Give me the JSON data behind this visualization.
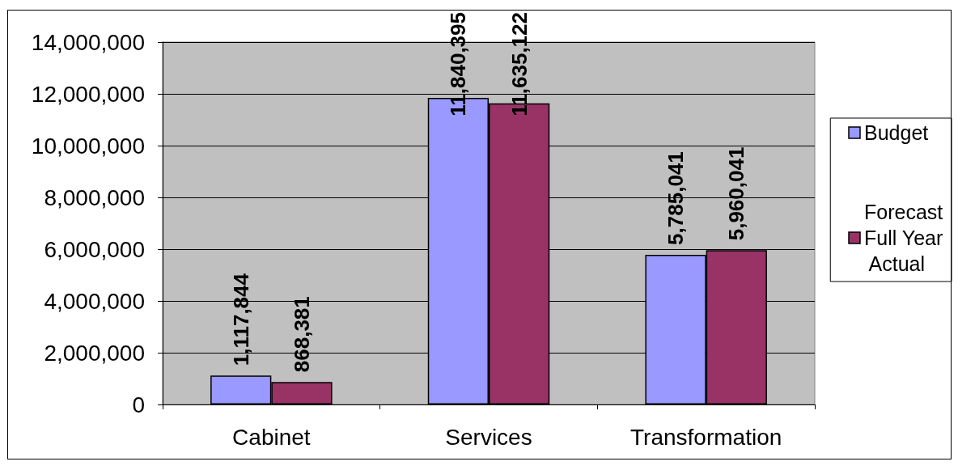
{
  "chart_data": {
    "type": "bar",
    "categories": [
      "Cabinet",
      "Services",
      "Transformation"
    ],
    "series": [
      {
        "name": "Budget",
        "color": "#9999ff",
        "values": [
          1117844,
          11840395,
          5785041
        ],
        "value_labels": [
          "1,117,844",
          "11,840,395",
          "5,785,041"
        ]
      },
      {
        "name": "Forecast Full Year Actual",
        "color": "#993366",
        "values": [
          868381,
          11635122,
          5960041
        ],
        "value_labels": [
          "868,381",
          "11,635,122",
          "5,960,041"
        ]
      }
    ],
    "ylim": [
      0,
      14000000
    ],
    "yticks": [
      0,
      {
        "value": 2000000,
        "label": "2,000,000"
      },
      {
        "value": 4000000,
        "label": "4,000,000"
      },
      {
        "value": 6000000,
        "label": "6,000,000"
      },
      {
        "value": 8000000,
        "label": "8,000,000"
      },
      {
        "value": 10000000,
        "label": "10,000,000"
      },
      {
        "value": 12000000,
        "label": "12,000,000"
      },
      {
        "value": 14000000,
        "label": "14,000,000"
      }
    ],
    "grid": "y",
    "legend": "right"
  }
}
